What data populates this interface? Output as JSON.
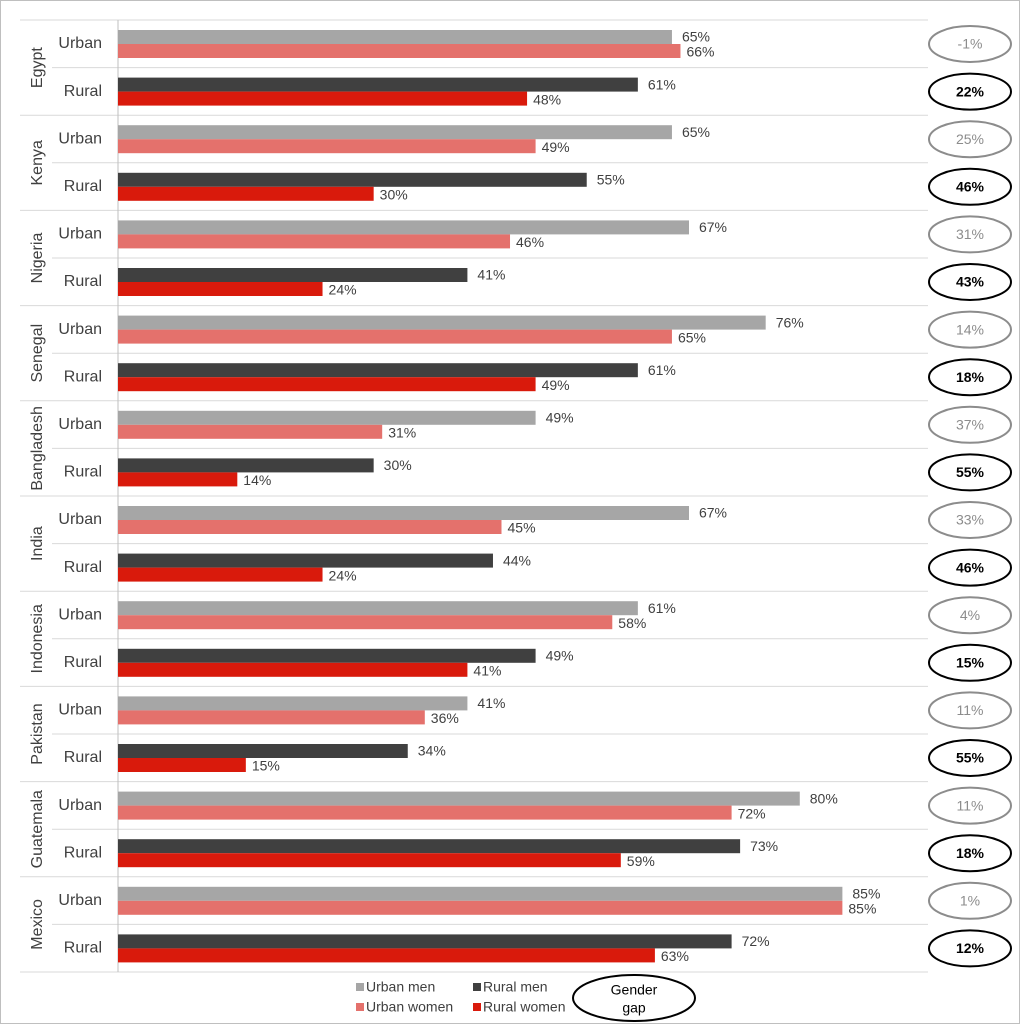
{
  "chart_data": {
    "type": "bar",
    "orientation": "horizontal",
    "xlim": [
      0,
      90
    ],
    "grid": true,
    "legend_placement": "bottom",
    "colors": {
      "Urban men": "#a6a6a6",
      "Urban women": "#e4716c",
      "Rural men": "#404040",
      "Rural women": "#d91a0c",
      "gap_urban_ring": "#8c8c8c",
      "gap_rural_ring": "#000000"
    },
    "legend": {
      "items": [
        "Urban men",
        "Rural men",
        "Urban women",
        "Rural women"
      ],
      "gap_label": "Gender gap"
    },
    "groups": [
      {
        "country": "Egypt",
        "rows": [
          {
            "label": "Urban",
            "men": 65,
            "women": 66,
            "men_label": "65%",
            "women_label": "66%",
            "gap": "-1%"
          },
          {
            "label": "Rural",
            "men": 61,
            "women": 48,
            "men_label": "61%",
            "women_label": "48%",
            "gap": "22%"
          }
        ]
      },
      {
        "country": "Kenya",
        "rows": [
          {
            "label": "Urban",
            "men": 65,
            "women": 49,
            "men_label": "65%",
            "women_label": "49%",
            "gap": "25%"
          },
          {
            "label": "Rural",
            "men": 55,
            "women": 30,
            "men_label": "55%",
            "women_label": "30%",
            "gap": "46%"
          }
        ]
      },
      {
        "country": "Nigeria",
        "rows": [
          {
            "label": "Urban",
            "men": 67,
            "women": 46,
            "men_label": "67%",
            "women_label": "46%",
            "gap": "31%"
          },
          {
            "label": "Rural",
            "men": 41,
            "women": 24,
            "men_label": "41%",
            "women_label": "24%",
            "gap": "43%"
          }
        ]
      },
      {
        "country": "Senegal",
        "rows": [
          {
            "label": "Urban",
            "men": 76,
            "women": 65,
            "men_label": "76%",
            "women_label": "65%",
            "gap": "14%"
          },
          {
            "label": "Rural",
            "men": 61,
            "women": 49,
            "men_label": "61%",
            "women_label": "49%",
            "gap": "18%"
          }
        ]
      },
      {
        "country": "Bangladesh",
        "rows": [
          {
            "label": "Urban",
            "men": 49,
            "women": 31,
            "men_label": "49%",
            "women_label": "31%",
            "gap": "37%"
          },
          {
            "label": "Rural",
            "men": 30,
            "women": 14,
            "men_label": "30%",
            "women_label": "14%",
            "gap": "55%"
          }
        ]
      },
      {
        "country": "India",
        "rows": [
          {
            "label": "Urban",
            "men": 67,
            "women": 45,
            "men_label": "67%",
            "women_label": "45%",
            "gap": "33%"
          },
          {
            "label": "Rural",
            "men": 44,
            "women": 24,
            "men_label": "44%",
            "women_label": "24%",
            "gap": "46%"
          }
        ]
      },
      {
        "country": "Indonesia",
        "rows": [
          {
            "label": "Urban",
            "men": 61,
            "women": 58,
            "men_label": "61%",
            "women_label": "58%",
            "gap": "4%"
          },
          {
            "label": "Rural",
            "men": 49,
            "women": 41,
            "men_label": "49%",
            "women_label": "41%",
            "gap": "15%"
          }
        ]
      },
      {
        "country": "Pakistan",
        "rows": [
          {
            "label": "Urban",
            "men": 41,
            "women": 36,
            "men_label": "41%",
            "women_label": "36%",
            "gap": "11%"
          },
          {
            "label": "Rural",
            "men": 34,
            "women": 15,
            "men_label": "34%",
            "women_label": "15%",
            "gap": "55%"
          }
        ]
      },
      {
        "country": "Guatemala",
        "rows": [
          {
            "label": "Urban",
            "men": 80,
            "women": 72,
            "men_label": "80%",
            "women_label": "72%",
            "gap": "11%"
          },
          {
            "label": "Rural",
            "men": 73,
            "women": 59,
            "men_label": "73%",
            "women_label": "59%",
            "gap": "18%"
          }
        ]
      },
      {
        "country": "Mexico",
        "rows": [
          {
            "label": "Urban",
            "men": 85,
            "women": 85,
            "men_label": "85%",
            "women_label": "85%",
            "gap": "1%"
          },
          {
            "label": "Rural",
            "men": 72,
            "women": 63,
            "men_label": "72%",
            "women_label": "63%",
            "gap": "12%"
          }
        ]
      }
    ]
  }
}
